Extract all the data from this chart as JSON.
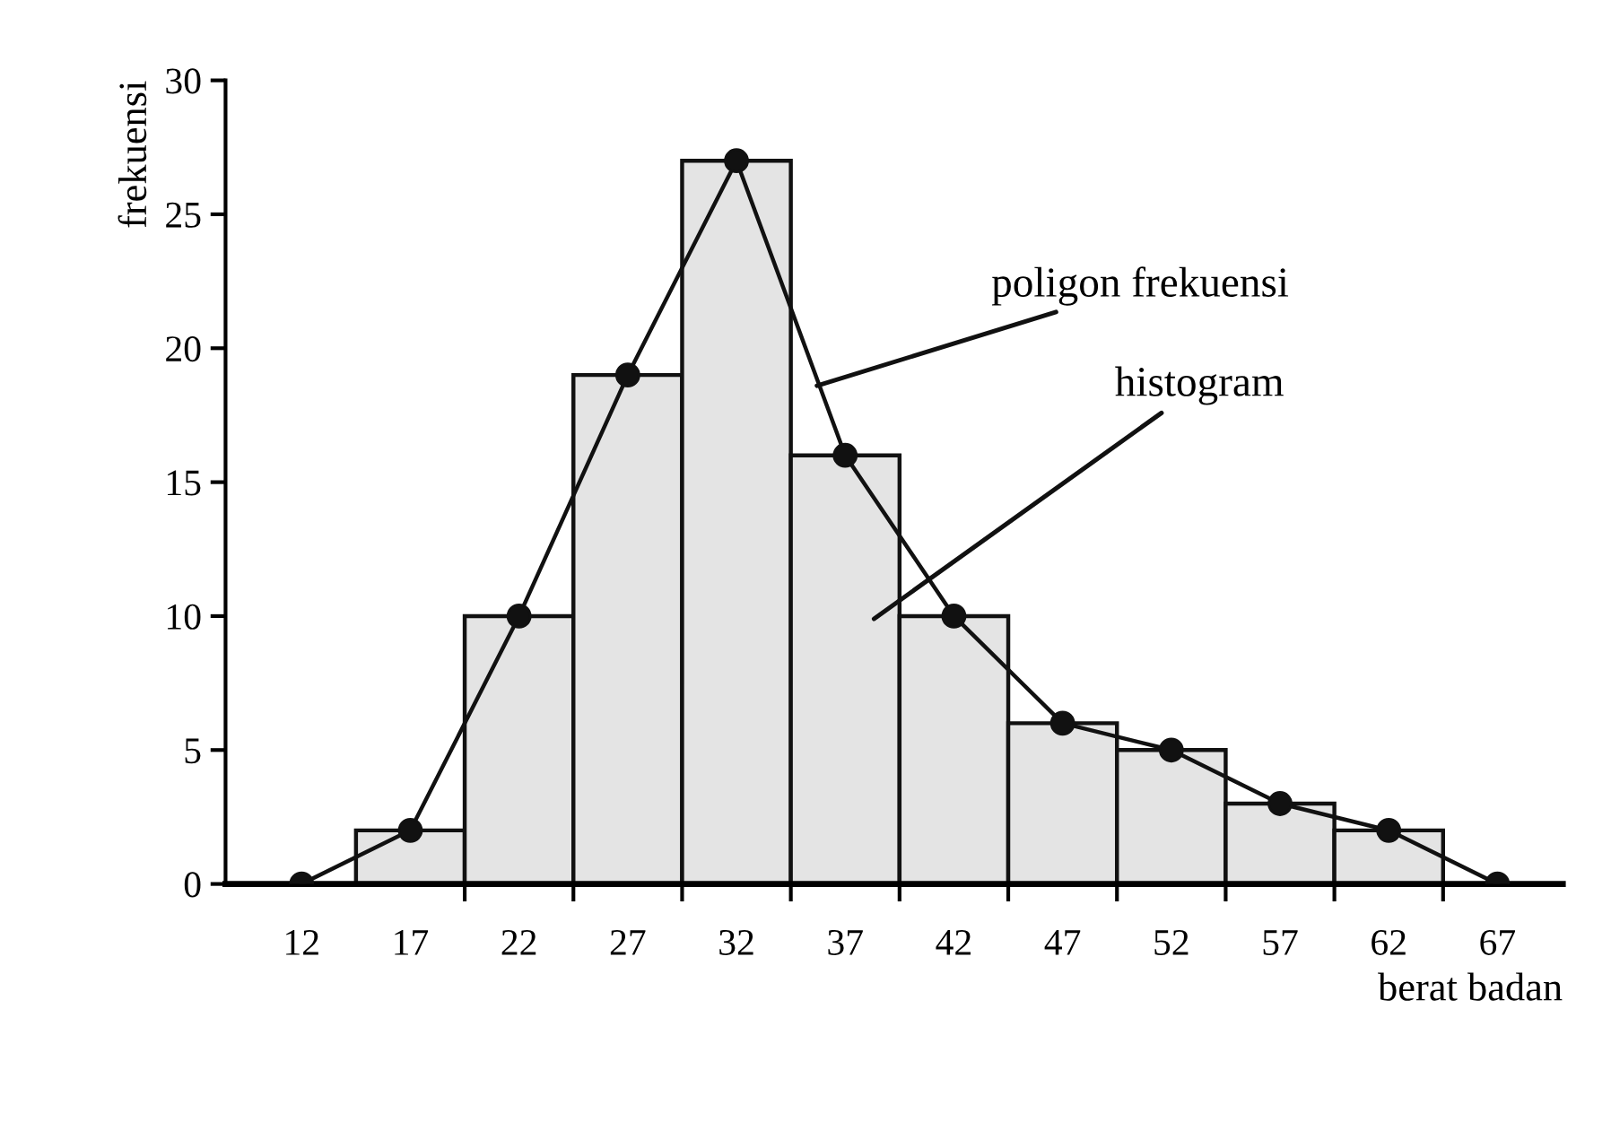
{
  "chart_data": {
    "type": "histogram",
    "xlabel": "berat badan",
    "ylabel": "frekuensi",
    "series": [
      {
        "bins": [
          14.5,
          19.5,
          24.5,
          29.5,
          34.5,
          39.5,
          44.5,
          49.5,
          54.5,
          59.5,
          64.5
        ],
        "values": [
          2,
          10,
          19,
          27,
          16,
          10,
          6,
          5,
          3,
          2
        ],
        "color": "#e4e4e4"
      },
      {
        "type": "line",
        "x": [
          12,
          17,
          22,
          27,
          32,
          37,
          42,
          47,
          52,
          57,
          62,
          67
        ],
        "values": [
          0,
          2,
          10,
          19,
          27,
          16,
          10,
          6,
          5,
          3,
          2,
          0
        ],
        "color": "#111111",
        "marker": "circle"
      }
    ],
    "annotations": [
      {
        "text": "poligon frekuensi",
        "x": 35.7,
        "y": 18.6
      },
      "histogram"
    ],
    "xlim": [
      8.5,
      70
    ],
    "ylim": [
      0,
      30
    ],
    "xticks": [
      12,
      17,
      22,
      27,
      32,
      37,
      42,
      47,
      52,
      57,
      62,
      67,
      {
        "value": 19.5,
        "label": null
      },
      {
        "value": 24.5,
        "label": null
      },
      {
        "value": 29.5,
        "label": null
      },
      {
        "value": 34.5,
        "label": null
      },
      {
        "value": 39.5,
        "label": null
      },
      {
        "value": 44.5,
        "label": null
      },
      {
        "value": 49.5,
        "label": null
      },
      {
        "value": 54.5,
        "label": null
      },
      {
        "value": 59.5,
        "label": null
      },
      {
        "value": 64.5,
        "label": null
      }
    ],
    "yticks": [
      0,
      5,
      10,
      15,
      20,
      25,
      30
    ],
    "grid": false,
    "legend": false
  }
}
